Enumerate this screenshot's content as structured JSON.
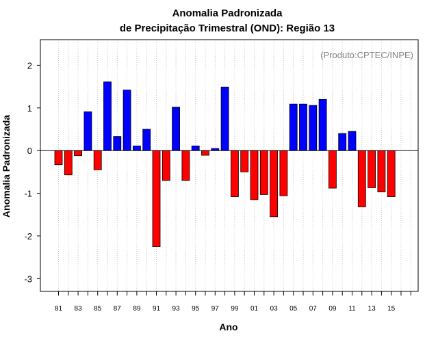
{
  "chart_data": {
    "type": "bar",
    "title_line1": "Anomalia Padronizada",
    "title_line2": "de Precipitação Trimestral (OND): Região 13",
    "xlabel": "Ano",
    "ylabel": "Anomalia Padronizada",
    "annotation": "(Produto:CPTEC/INPE)",
    "ylim": [
      -3.3,
      2.6
    ],
    "yticks": [
      2,
      1,
      0,
      -1,
      -2,
      -3
    ],
    "ytick_labels": [
      "2",
      "1",
      "0",
      "-1",
      "-2",
      "-3"
    ],
    "x_start_year": 1981,
    "x_end_year": 2017,
    "categories": [
      "1981",
      "1982",
      "1983",
      "1984",
      "1985",
      "1986",
      "1987",
      "1988",
      "1989",
      "1990",
      "1991",
      "1992",
      "1993",
      "1994",
      "1995",
      "1996",
      "1997",
      "1998",
      "1999",
      "2000",
      "2001",
      "2002",
      "2003",
      "2004",
      "2005",
      "2006",
      "2007",
      "2008",
      "2009",
      "2010",
      "2011",
      "2012",
      "2013",
      "2014",
      "2015"
    ],
    "values": [
      -0.33,
      -0.57,
      -0.12,
      0.91,
      -0.45,
      1.61,
      0.33,
      1.42,
      0.11,
      0.5,
      -2.25,
      -0.7,
      1.02,
      -0.7,
      0.11,
      -0.11,
      0.05,
      1.49,
      -1.08,
      -0.5,
      -1.15,
      -1.03,
      -1.55,
      -1.06,
      1.09,
      1.09,
      1.06,
      1.2,
      -0.88,
      0.4,
      0.45,
      -1.32,
      -0.87,
      -0.97,
      -1.08
    ],
    "xtick_labels": [
      "81",
      "83",
      "85",
      "87",
      "89",
      "91",
      "93",
      "95",
      "97",
      "99",
      "01",
      "03",
      "05",
      "07",
      "09",
      "11",
      "13",
      "15"
    ],
    "colors": {
      "positive": "#0000ff",
      "negative": "#ff0000",
      "grid": "#c8c8c8",
      "axis": "#000000"
    },
    "grid": true
  }
}
